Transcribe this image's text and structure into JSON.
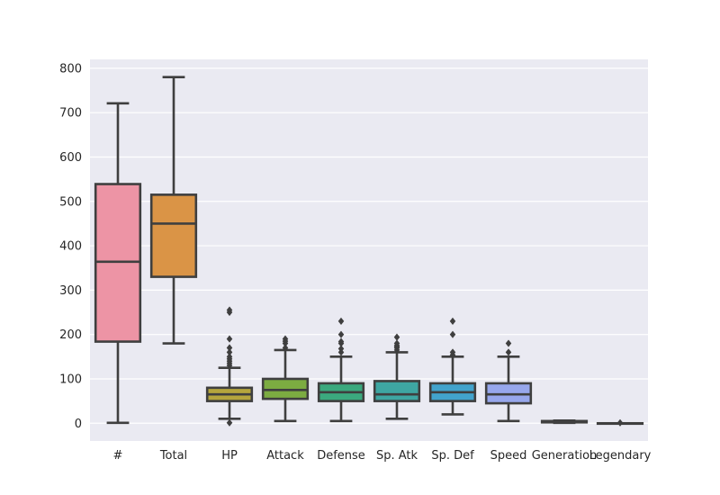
{
  "chart_data": {
    "type": "boxplot",
    "title": "",
    "xlabel": "",
    "ylabel": "",
    "ylim": [
      -40,
      820
    ],
    "yticks": [
      0,
      100,
      200,
      300,
      400,
      500,
      600,
      700,
      800
    ],
    "ytick_labels": [
      "0",
      "100",
      "200",
      "300",
      "400",
      "500",
      "600",
      "700",
      "800"
    ],
    "grid": true,
    "background": "#eaeaf2",
    "categories": [
      "#",
      "Total",
      "HP",
      "Attack",
      "Defense",
      "Sp. Atk",
      "Sp. Def",
      "Speed",
      "Generation",
      "Legendary"
    ],
    "boxes": [
      {
        "name": "#",
        "color": "#ed94a5",
        "whisker_low": 1,
        "q1": 184,
        "median": 364,
        "q3": 539,
        "whisker_high": 721,
        "outliers": []
      },
      {
        "name": "Total",
        "color": "#da9446",
        "whisker_low": 180,
        "q1": 330,
        "median": 450,
        "q3": 515,
        "whisker_high": 780,
        "outliers": []
      },
      {
        "name": "HP",
        "color": "#b5a53d",
        "whisker_low": 10,
        "q1": 50,
        "median": 65,
        "q3": 80,
        "whisker_high": 125,
        "outliers": [
          1,
          130,
          135,
          140,
          145,
          150,
          160,
          170,
          190,
          250,
          255
        ]
      },
      {
        "name": "Attack",
        "color": "#7cac41",
        "whisker_low": 5,
        "q1": 55,
        "median": 75,
        "q3": 100,
        "whisker_high": 165,
        "outliers": [
          170,
          180,
          185,
          190
        ]
      },
      {
        "name": "Defense",
        "color": "#3ba97e",
        "whisker_low": 5,
        "q1": 50,
        "median": 70,
        "q3": 90,
        "whisker_high": 150,
        "outliers": [
          160,
          168,
          180,
          184,
          200,
          230
        ]
      },
      {
        "name": "Sp. Atk",
        "color": "#3ea6a2",
        "whisker_low": 10,
        "q1": 50,
        "median": 65,
        "q3": 95,
        "whisker_high": 160,
        "outliers": [
          165,
          170,
          173,
          175,
          180,
          194
        ]
      },
      {
        "name": "Sp. Def",
        "color": "#42a3cc",
        "whisker_low": 20,
        "q1": 50,
        "median": 70,
        "q3": 90,
        "whisker_high": 150,
        "outliers": [
          154,
          160,
          200,
          230
        ]
      },
      {
        "name": "Speed",
        "color": "#97a7ec",
        "whisker_low": 5,
        "q1": 45,
        "median": 65,
        "q3": 90,
        "whisker_high": 150,
        "outliers": [
          160,
          180
        ]
      },
      {
        "name": "Generation",
        "color": "#cb93e3",
        "whisker_low": 1,
        "q1": 2,
        "median": 3,
        "q3": 5,
        "whisker_high": 6,
        "outliers": []
      },
      {
        "name": "Legendary",
        "color": "#e68fc8",
        "whisker_low": 0,
        "q1": 0,
        "median": 0,
        "q3": 0,
        "whisker_high": 0,
        "outliers": [
          1
        ]
      }
    ]
  }
}
